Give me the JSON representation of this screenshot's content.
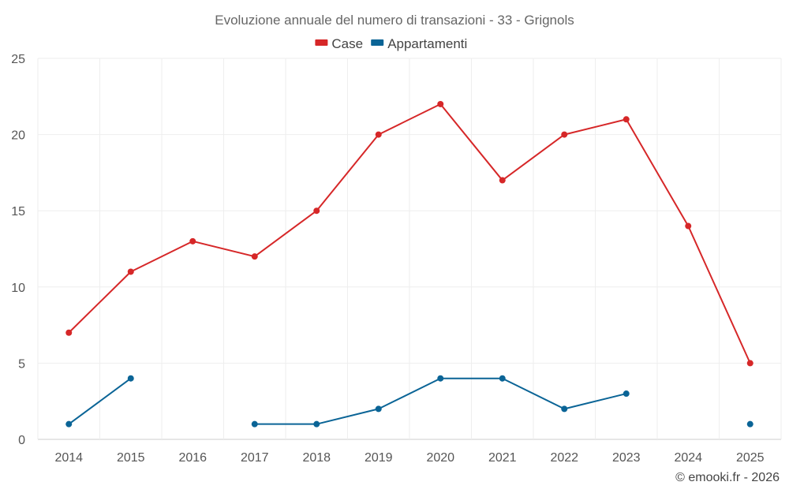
{
  "chart_data": {
    "type": "line",
    "title": "Evoluzione annuale del numero di transazioni - 33 - Grignols",
    "categories": [
      "2014",
      "2015",
      "2016",
      "2017",
      "2018",
      "2019",
      "2020",
      "2021",
      "2022",
      "2023",
      "2024",
      "2025"
    ],
    "ylim": [
      0,
      25
    ],
    "yticks": [
      0,
      5,
      10,
      15,
      20,
      25
    ],
    "xlabel": "",
    "ylabel": "",
    "grid": true,
    "legend_position": "top-center",
    "series": [
      {
        "name": "Case",
        "color": "#d62728",
        "values": [
          7,
          11,
          13,
          12,
          15,
          20,
          22,
          17,
          20,
          21,
          14,
          5
        ]
      },
      {
        "name": "Appartamenti",
        "color": "#0a6496",
        "values": [
          1,
          4,
          null,
          1,
          1,
          2,
          4,
          4,
          2,
          3,
          null,
          1
        ]
      }
    ]
  },
  "credit": "© emooki.fr - 2026"
}
